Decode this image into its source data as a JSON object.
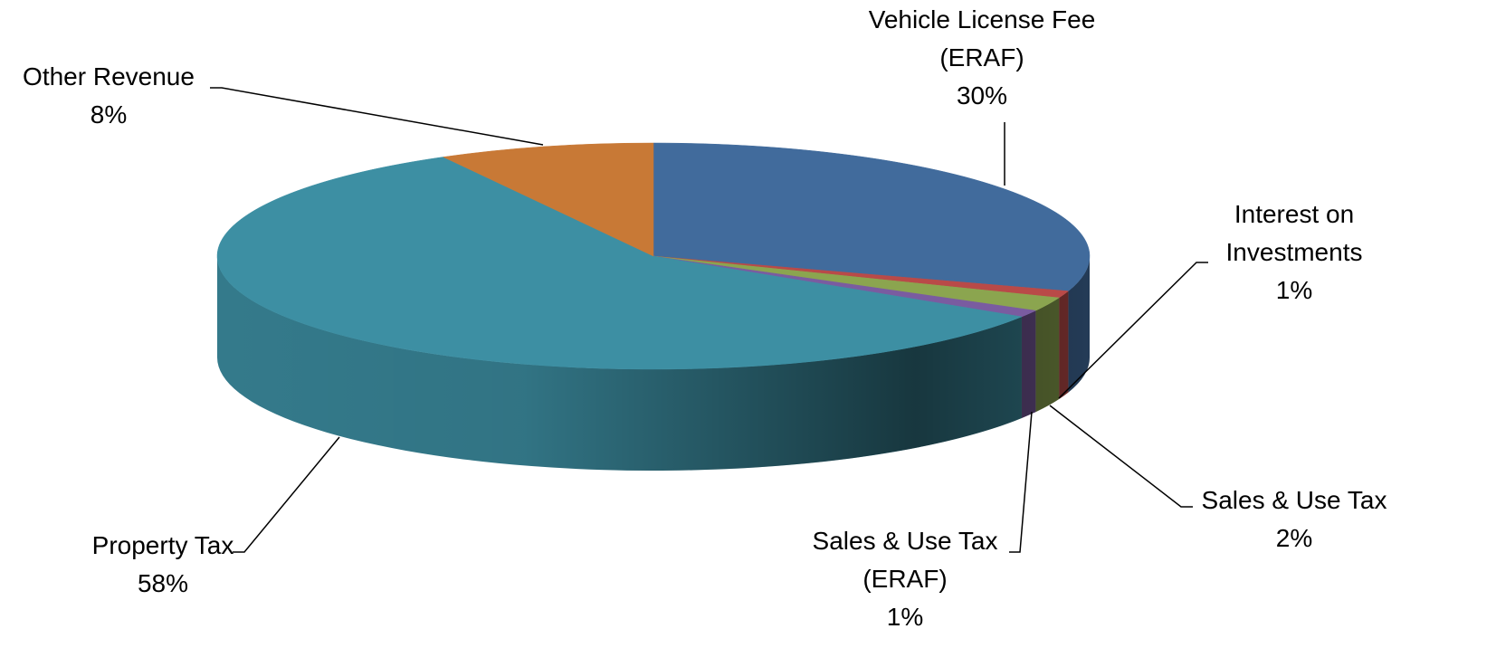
{
  "chart_data": {
    "type": "pie3d",
    "categories": [
      "Vehicle License Fee (ERAF)",
      "Interest on Investments",
      "Sales & Use Tax",
      "Sales & Use Tax (ERAF)",
      "Property Tax",
      "Other Revenue"
    ],
    "values": [
      30,
      1,
      2,
      1,
      58,
      8
    ],
    "value_labels": [
      "30%",
      "1%",
      "2%",
      "1%",
      "58%",
      "8%"
    ],
    "colors": [
      "#416b9c",
      "#b94a48",
      "#8ba54f",
      "#7a5ca0",
      "#3d8fa3",
      "#c87936"
    ]
  }
}
